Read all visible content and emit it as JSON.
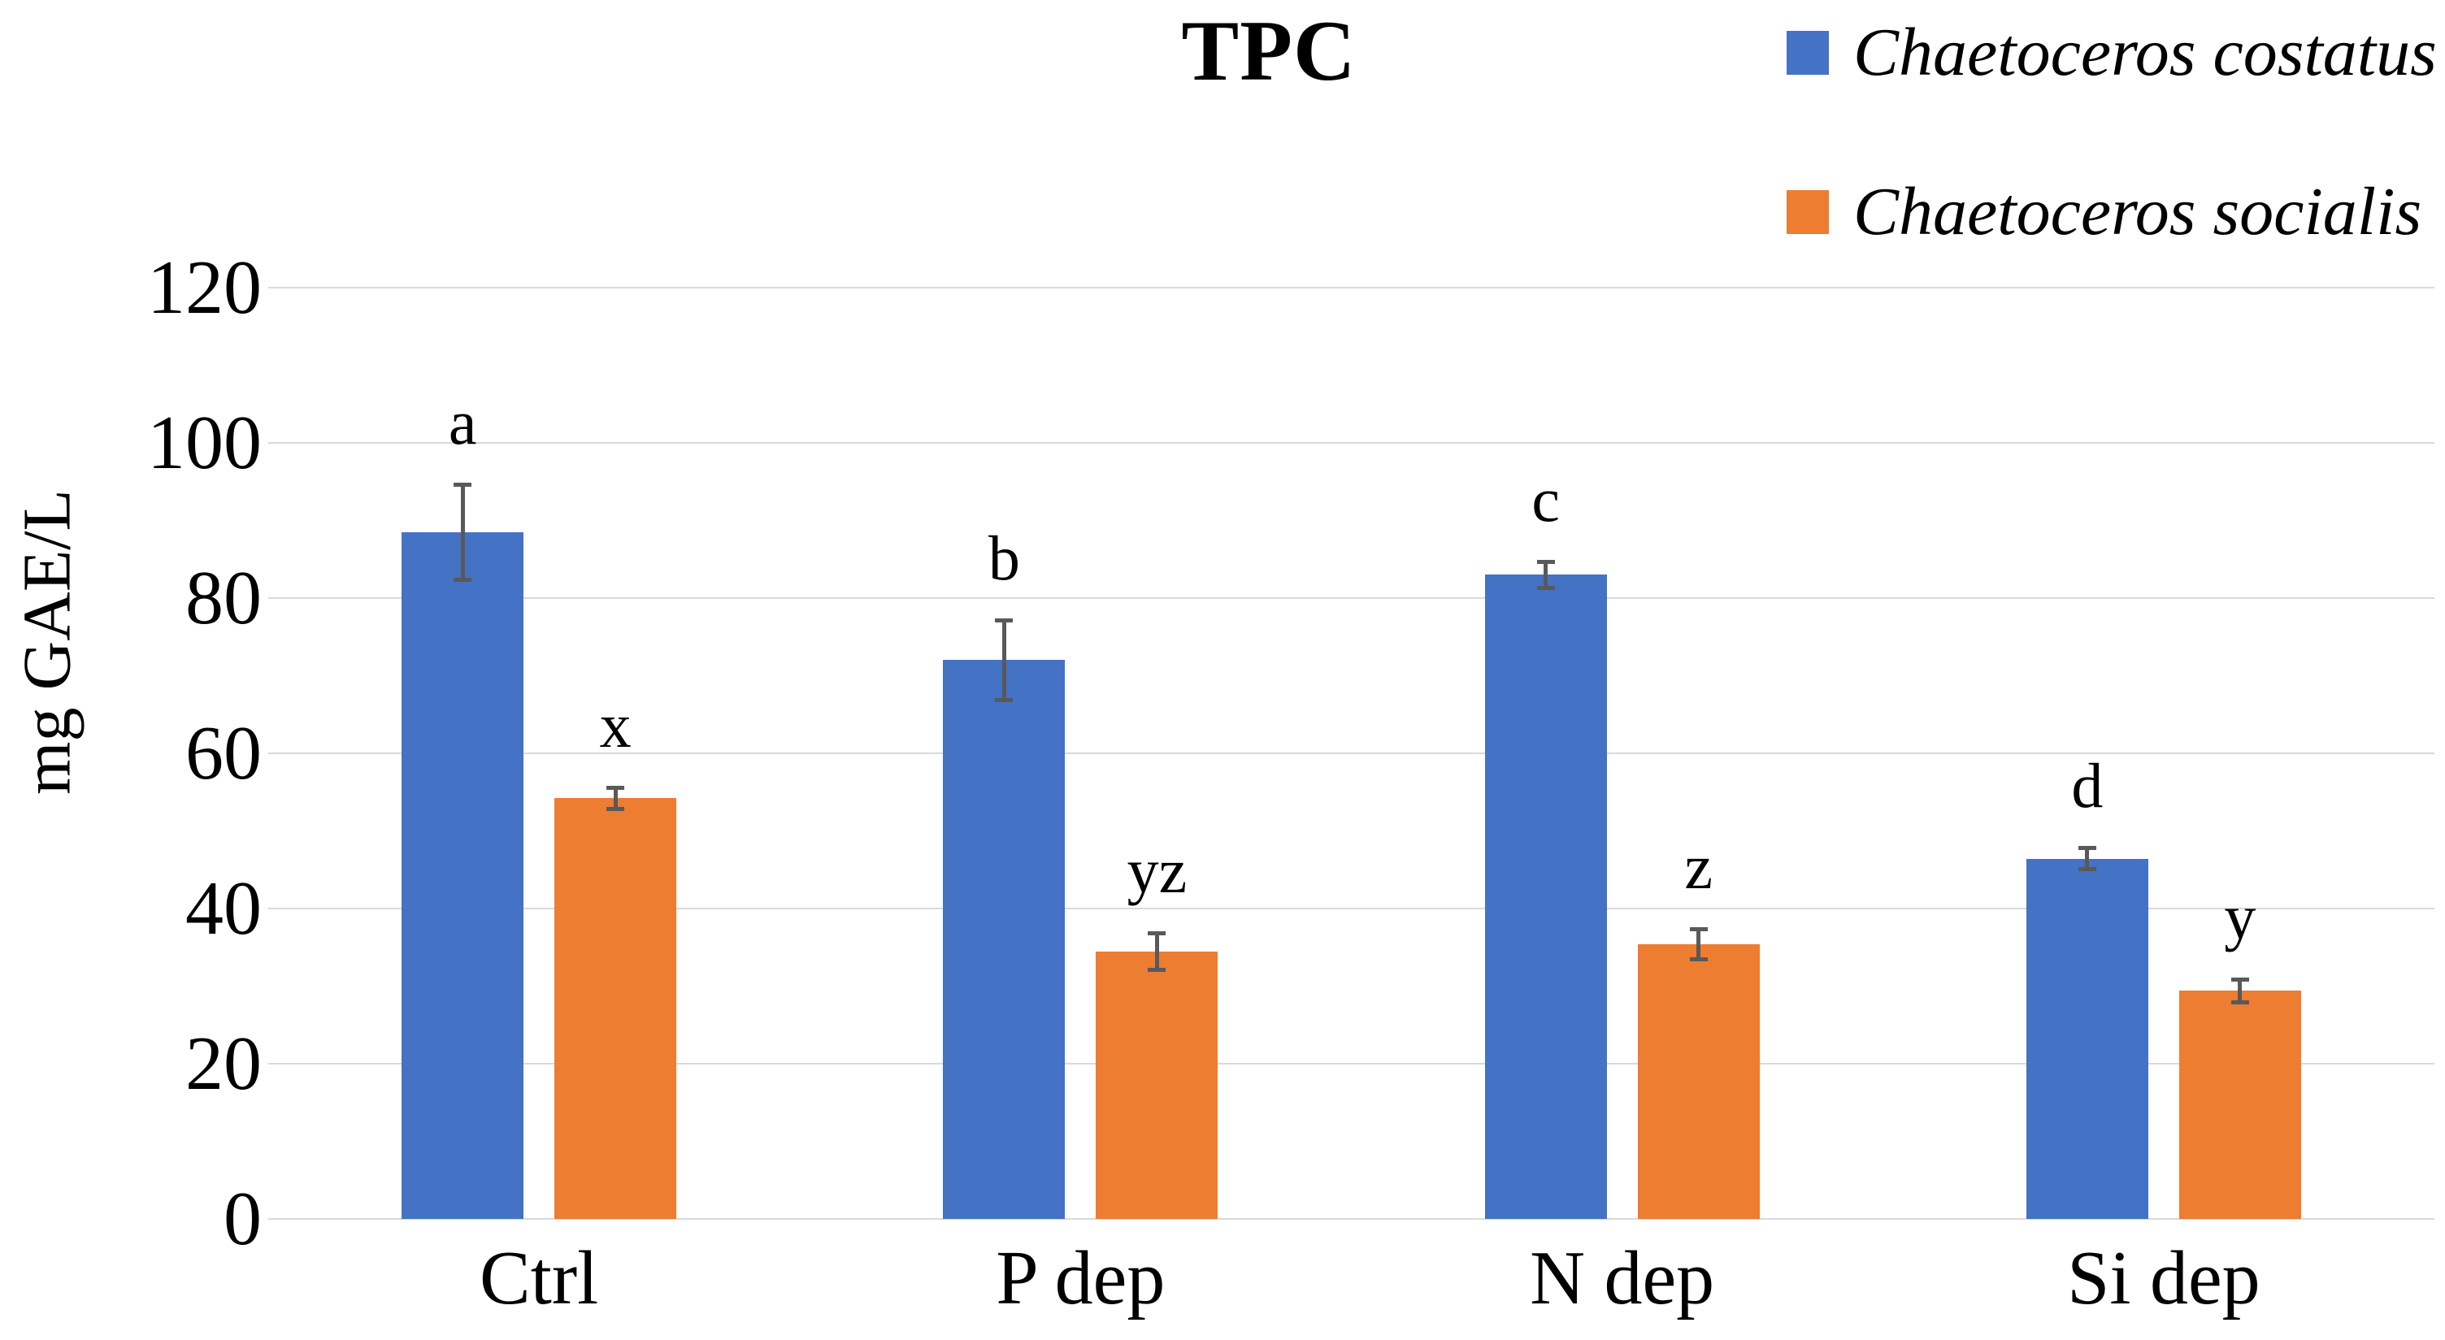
{
  "chart_data": {
    "type": "bar",
    "title": "TPC",
    "xlabel": "",
    "ylabel": "mg GAE/L",
    "ylim": [
      0,
      120
    ],
    "ytick_step": 20,
    "grid": true,
    "legend_position": "top-right",
    "categories": [
      "Ctrl",
      "P dep",
      "N dep",
      "Si dep"
    ],
    "series": [
      {
        "name": "Chaetoceros costatus",
        "color": "#4472C4",
        "values": [
          88.5,
          72.0,
          83.0,
          46.4
        ],
        "errors": [
          6.0,
          5.0,
          1.5,
          1.2
        ],
        "sig_letters": [
          "a",
          "b",
          "c",
          "d"
        ]
      },
      {
        "name": "Chaetoceros socialis",
        "color": "#ED7D31",
        "values": [
          54.2,
          34.5,
          35.4,
          29.4
        ],
        "errors": [
          1.2,
          2.2,
          1.8,
          1.3
        ],
        "sig_letters": [
          "x",
          "yz",
          "z",
          "y"
        ]
      }
    ],
    "error_bar_color": "#595959",
    "gridline_color": "#D9D9D9",
    "units": "mg GAE/L"
  }
}
